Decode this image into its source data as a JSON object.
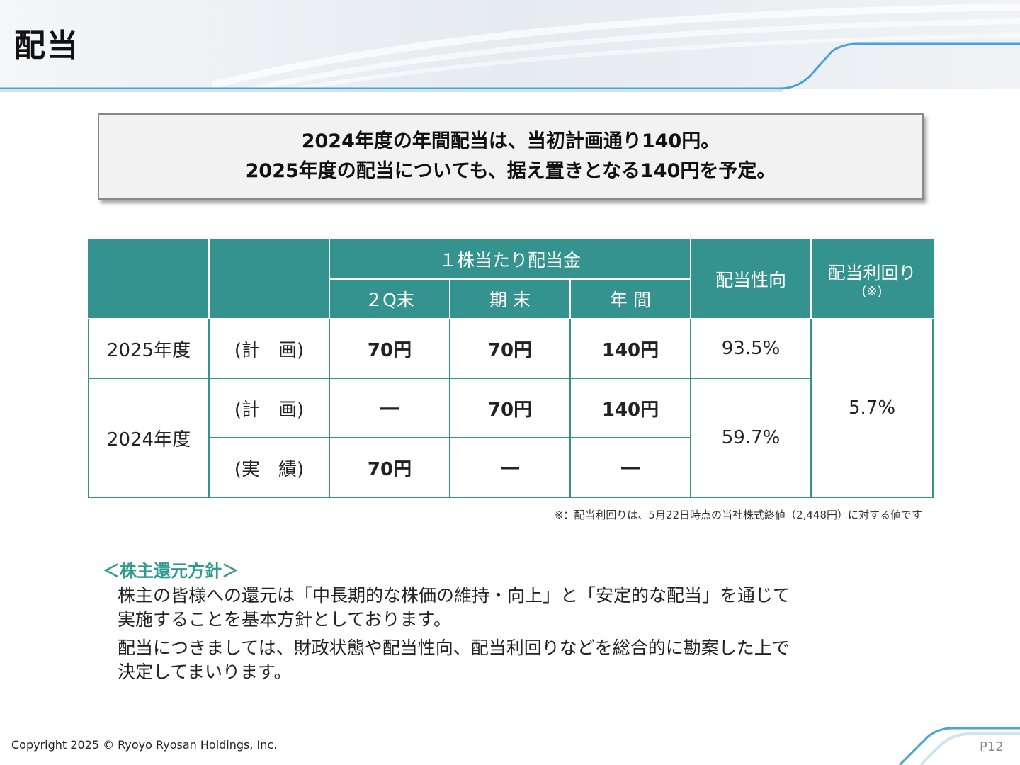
{
  "header": {
    "title": "配当"
  },
  "summary": {
    "line1": "2024年度の年間配当は、当初計画通り140円。",
    "line2": "2025年度の配当についても、据え置きとなる140円を予定。"
  },
  "table": {
    "group_header": "１株当たり配当金",
    "col_2q": "２Q末",
    "col_end": "期 末",
    "col_annual": "年 間",
    "col_payout": "配当性向",
    "col_yield": "配当利回り",
    "col_yield_note": "(※)",
    "rows": [
      {
        "year": "2025年度",
        "type": "(計　画)",
        "q2": "70円",
        "end": "70円",
        "annual": "140円",
        "payout": "93.5%"
      },
      {
        "year": "2024年度",
        "type": "(計　画)",
        "q2": "―",
        "end": "70円",
        "annual": "140円",
        "payout": "59.7%"
      },
      {
        "type": "(実　績)",
        "q2": "70円",
        "end": "―",
        "annual": "―"
      }
    ],
    "yield_value": "5.7%"
  },
  "footnote": "※：配当利回りは、5月22日時点の当社株式終値（2,448円）に対する値です",
  "policy": {
    "heading": "＜株主還元方針＞",
    "p1_line1": "株主の皆様への還元は「中長期的な株価の維持・向上」と「安定的な配当」を通じて",
    "p1_line2": "実施することを基本方針としております。",
    "p2_line1": "配当につきましては、財政状態や配当性向、配当利回りなどを総合的に勘案した上で",
    "p2_line2": "決定してまいります。"
  },
  "footer": {
    "copyright": "Copyright 2025 © Ryoyo Ryosan Holdings, Inc.",
    "page": "P12"
  },
  "colors": {
    "teal": "#35938f",
    "heading_green": "#2f9a8f",
    "line_blue": "#4aa3d8"
  }
}
